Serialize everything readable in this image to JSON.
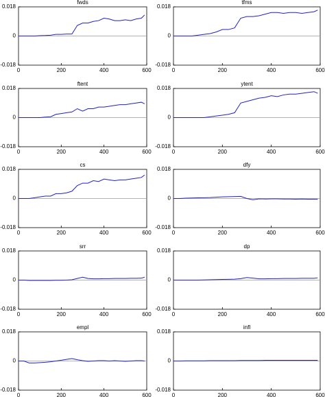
{
  "chart_data": [
    {
      "type": "line",
      "title": "fwds",
      "color": "#1f1fd0",
      "xlim": [
        0,
        600
      ],
      "ylim": [
        -0.018,
        0.018
      ],
      "xticks": [
        0,
        200,
        400,
        600
      ],
      "yticks": [
        -0.018,
        0,
        0.018
      ],
      "x": [
        0,
        25,
        50,
        75,
        100,
        125,
        150,
        175,
        200,
        225,
        250,
        275,
        300,
        325,
        350,
        375,
        400,
        425,
        450,
        475,
        500,
        525,
        550,
        575,
        590
      ],
      "values": [
        0,
        0,
        0,
        0,
        0.0002,
        0.0003,
        0.0005,
        0.001,
        0.001,
        0.0012,
        0.0012,
        0.0065,
        0.008,
        0.008,
        0.009,
        0.0095,
        0.011,
        0.0105,
        0.0095,
        0.0095,
        0.01,
        0.0095,
        0.0105,
        0.011,
        0.013
      ]
    },
    {
      "type": "line",
      "title": "tfms",
      "color": "#1f1fd0",
      "xlim": [
        0,
        600
      ],
      "ylim": [
        -0.018,
        0.018
      ],
      "xticks": [
        0,
        200,
        400,
        600
      ],
      "yticks": [
        -0.018,
        0,
        0.018
      ],
      "x": [
        0,
        25,
        50,
        75,
        100,
        125,
        150,
        175,
        200,
        225,
        250,
        275,
        300,
        325,
        350,
        375,
        400,
        425,
        450,
        475,
        500,
        525,
        550,
        575,
        590
      ],
      "values": [
        0,
        0,
        0,
        0,
        0.0005,
        0.001,
        0.0015,
        0.0025,
        0.004,
        0.004,
        0.005,
        0.011,
        0.012,
        0.012,
        0.0125,
        0.0135,
        0.0145,
        0.0145,
        0.014,
        0.0145,
        0.0145,
        0.014,
        0.0145,
        0.015,
        0.016
      ]
    },
    {
      "type": "line",
      "title": "ftent",
      "color": "#1f1fd0",
      "xlim": [
        0,
        600
      ],
      "ylim": [
        -0.018,
        0.018
      ],
      "xticks": [
        0,
        200,
        400,
        600
      ],
      "yticks": [
        -0.018,
        0,
        0.018
      ],
      "x": [
        0,
        25,
        50,
        75,
        100,
        125,
        150,
        175,
        200,
        225,
        250,
        275,
        300,
        325,
        350,
        375,
        400,
        425,
        450,
        475,
        500,
        525,
        550,
        575,
        590
      ],
      "values": [
        0,
        0,
        0,
        0,
        0,
        0.0003,
        0.0005,
        0.002,
        0.0025,
        0.003,
        0.0035,
        0.0055,
        0.004,
        0.0055,
        0.0055,
        0.0065,
        0.0065,
        0.007,
        0.0075,
        0.008,
        0.008,
        0.0085,
        0.009,
        0.0095,
        0.0085
      ]
    },
    {
      "type": "line",
      "title": "ytent",
      "color": "#1f1fd0",
      "xlim": [
        0,
        600
      ],
      "ylim": [
        -0.018,
        0.018
      ],
      "xticks": [
        0,
        200,
        400,
        600
      ],
      "yticks": [
        -0.018,
        0,
        0.018
      ],
      "x": [
        0,
        25,
        50,
        75,
        100,
        125,
        150,
        175,
        200,
        225,
        250,
        275,
        300,
        325,
        350,
        375,
        400,
        425,
        450,
        475,
        500,
        525,
        550,
        575,
        590
      ],
      "values": [
        0,
        0,
        0,
        0,
        0,
        0,
        0.0005,
        0.001,
        0.0015,
        0.002,
        0.003,
        0.009,
        0.01,
        0.011,
        0.012,
        0.0125,
        0.0135,
        0.013,
        0.014,
        0.0145,
        0.0145,
        0.015,
        0.0155,
        0.016,
        0.015
      ]
    },
    {
      "type": "line",
      "title": "cs",
      "color": "#1f1fd0",
      "xlim": [
        0,
        600
      ],
      "ylim": [
        -0.018,
        0.018
      ],
      "xticks": [
        0,
        200,
        400,
        600
      ],
      "yticks": [
        -0.018,
        0,
        0.018
      ],
      "x": [
        0,
        25,
        50,
        75,
        100,
        125,
        150,
        175,
        200,
        225,
        250,
        275,
        300,
        325,
        350,
        375,
        400,
        425,
        450,
        475,
        500,
        525,
        550,
        575,
        590
      ],
      "values": [
        0,
        0,
        0,
        0.0005,
        0.001,
        0.0015,
        0.0015,
        0.003,
        0.003,
        0.0035,
        0.0045,
        0.008,
        0.0095,
        0.0095,
        0.011,
        0.0105,
        0.012,
        0.0115,
        0.011,
        0.0115,
        0.0115,
        0.012,
        0.0125,
        0.013,
        0.0145
      ]
    },
    {
      "type": "line",
      "title": "dfy",
      "color": "#1f1fd0",
      "xlim": [
        0,
        600
      ],
      "ylim": [
        -0.018,
        0.018
      ],
      "xticks": [
        0,
        200,
        400,
        600
      ],
      "yticks": [
        -0.018,
        0,
        0.018
      ],
      "x": [
        0,
        25,
        50,
        75,
        100,
        125,
        150,
        175,
        200,
        225,
        250,
        275,
        300,
        325,
        350,
        375,
        400,
        425,
        450,
        475,
        500,
        525,
        550,
        575,
        590
      ],
      "values": [
        0,
        0,
        0.0002,
        0.0003,
        0.0004,
        0.0005,
        0.0006,
        0.0008,
        0.001,
        0.0011,
        0.0012,
        0.0013,
        0,
        -0.0008,
        -0.0002,
        -0.0003,
        -0.0002,
        -0.0002,
        -0.0003,
        -0.0003,
        -0.0004,
        -0.0003,
        -0.0004,
        -0.0004,
        -0.0005
      ]
    },
    {
      "type": "line",
      "title": "srr",
      "color": "#1f1fd0",
      "xlim": [
        0,
        600
      ],
      "ylim": [
        -0.018,
        0.018
      ],
      "xticks": [
        0,
        200,
        400,
        600
      ],
      "yticks": [
        -0.018,
        0,
        0.018
      ],
      "x": [
        0,
        25,
        50,
        75,
        100,
        125,
        150,
        175,
        200,
        225,
        250,
        275,
        300,
        325,
        350,
        375,
        400,
        425,
        450,
        475,
        500,
        525,
        550,
        575,
        590
      ],
      "values": [
        0,
        0,
        -0.0002,
        -0.0002,
        -0.0002,
        -0.0002,
        -0.0002,
        -0.0001,
        -0.0001,
        0,
        0.0002,
        0.001,
        0.0018,
        0.001,
        0.0008,
        0.0008,
        0.0009,
        0.0009,
        0.001,
        0.001,
        0.001,
        0.0011,
        0.0011,
        0.0012,
        0.0018
      ]
    },
    {
      "type": "line",
      "title": "dp",
      "color": "#1f1fd0",
      "xlim": [
        0,
        600
      ],
      "ylim": [
        -0.018,
        0.018
      ],
      "xticks": [
        0,
        200,
        400,
        600
      ],
      "yticks": [
        -0.018,
        0,
        0.018
      ],
      "x": [
        0,
        25,
        50,
        75,
        100,
        125,
        150,
        175,
        200,
        225,
        250,
        275,
        300,
        325,
        350,
        375,
        400,
        425,
        450,
        475,
        500,
        525,
        550,
        575,
        590
      ],
      "values": [
        0,
        0,
        0,
        0,
        0,
        0.0001,
        0.0002,
        0.0003,
        0.0004,
        0.0005,
        0.0006,
        0.0009,
        0.0016,
        0.0012,
        0.0008,
        0.0008,
        0.0009,
        0.0009,
        0.001,
        0.001,
        0.001,
        0.0011,
        0.0011,
        0.0011,
        0.0014
      ]
    },
    {
      "type": "line",
      "title": "empl",
      "color": "#1f1fd0",
      "xlim": [
        0,
        600
      ],
      "ylim": [
        -0.018,
        0.018
      ],
      "xticks": [
        0,
        200,
        400,
        600
      ],
      "yticks": [
        -0.018,
        0,
        0.018
      ],
      "x": [
        0,
        25,
        50,
        75,
        100,
        125,
        150,
        175,
        200,
        225,
        250,
        275,
        300,
        325,
        350,
        375,
        400,
        425,
        450,
        475,
        500,
        525,
        550,
        575,
        590
      ],
      "values": [
        0,
        0,
        -0.0012,
        -0.0012,
        -0.001,
        -0.0008,
        -0.0005,
        0,
        0.0005,
        0.001,
        0.0015,
        0.0008,
        0.0002,
        -0.0002,
        0,
        0.0002,
        0.0002,
        0,
        0.0002,
        0,
        -0.0002,
        0,
        0.0002,
        0.0002,
        0
      ]
    },
    {
      "type": "line",
      "title": "infl",
      "color": "#1f1fd0",
      "xlim": [
        0,
        600
      ],
      "ylim": [
        -0.018,
        0.018
      ],
      "xticks": [
        0,
        200,
        400,
        600
      ],
      "yticks": [
        -0.018,
        0,
        0.018
      ],
      "x": [
        0,
        25,
        50,
        75,
        100,
        125,
        150,
        175,
        200,
        225,
        250,
        275,
        300,
        325,
        350,
        375,
        400,
        425,
        450,
        475,
        500,
        525,
        550,
        575,
        590
      ],
      "values": [
        0,
        0,
        0.0001,
        0.0001,
        0.0001,
        0.0001,
        0.0002,
        0.0002,
        0.0002,
        0.0002,
        0.0002,
        0.0003,
        0.0003,
        0.0003,
        0.0003,
        0.0004,
        0.0004,
        0.0004,
        0.0004,
        0.0004,
        0.0004,
        0.0004,
        0.0004,
        0.0004,
        0.0004
      ]
    }
  ]
}
